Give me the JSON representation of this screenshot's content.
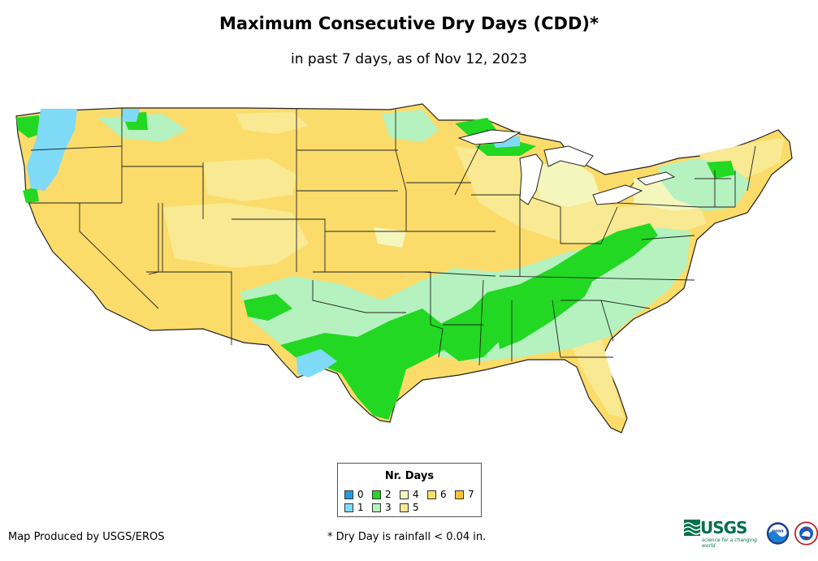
{
  "title": "Maximum Consecutive Dry Days (CDD)*",
  "subtitle": "in past 7 days, as of Nov 12, 2023",
  "legend": {
    "title": "Nr. Days",
    "items": [
      {
        "label": "0",
        "color": "#1e9be6"
      },
      {
        "label": "1",
        "color": "#7fdaf7"
      },
      {
        "label": "2",
        "color": "#22d822"
      },
      {
        "label": "3",
        "color": "#b5f2c0"
      },
      {
        "label": "4",
        "color": "#f4f6bd"
      },
      {
        "label": "5",
        "color": "#f8e992"
      },
      {
        "label": "6",
        "color": "#fbdc6a"
      },
      {
        "label": "7",
        "color": "#fbc42e"
      }
    ]
  },
  "credit": "Map Produced by USGS/EROS",
  "footnote": "* Dry Day is rainfall < 0.04 in.",
  "logos": {
    "usgs": "USGS",
    "usgs_tagline": "science for a changing world",
    "noaa": "noaa",
    "nws": "NATIONAL WEATHER SERVICE"
  }
}
